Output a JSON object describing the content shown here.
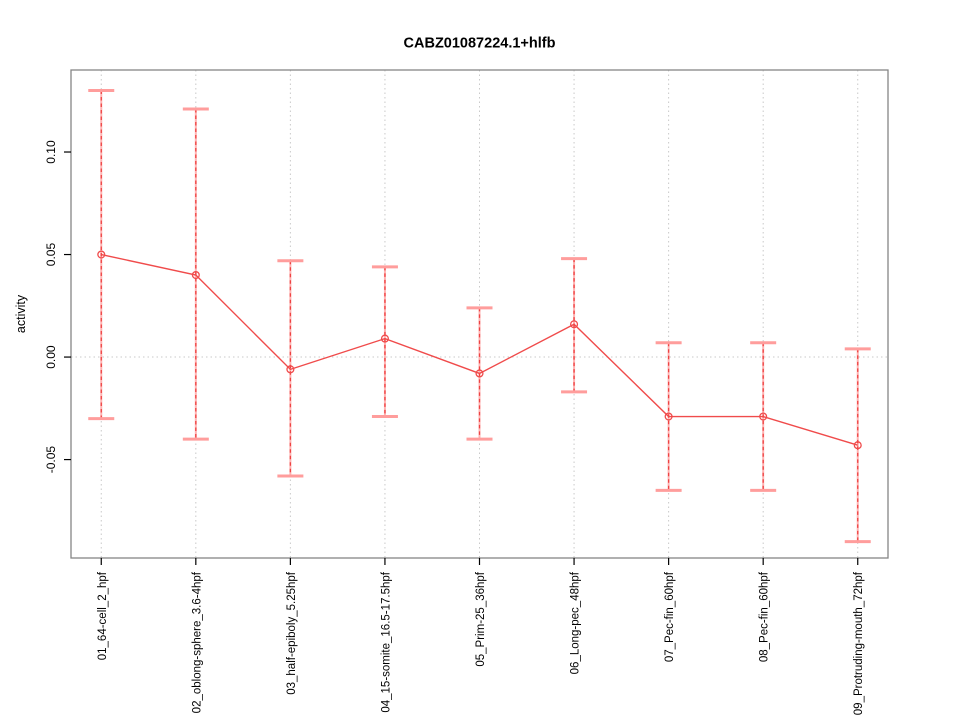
{
  "chart_data": {
    "type": "line",
    "title": "CABZ01087224.1+hlfb",
    "ylabel": "activity",
    "xlabel": "",
    "categories": [
      "01_64-cell_2_hpf",
      "02_oblong-sphere_3.6-4hpf",
      "03_half-epiboly_5.25hpf",
      "04_15-somite_16.5-17.5hpf",
      "05_Prim-25_36hpf",
      "06_Long-pec_48hpf",
      "07_Pec-fin_60hpf",
      "08_Pec-fin_60hpf",
      "09_Protruding-mouth_72hpf"
    ],
    "series": [
      {
        "name": "activity",
        "values": [
          0.05,
          0.04,
          -0.006,
          0.009,
          -0.008,
          0.016,
          -0.029,
          -0.029,
          -0.043
        ],
        "error_high": [
          0.13,
          0.121,
          0.047,
          0.044,
          0.024,
          0.048,
          0.007,
          0.007,
          0.004
        ],
        "error_low": [
          -0.03,
          -0.04,
          -0.058,
          -0.029,
          -0.04,
          -0.017,
          -0.065,
          -0.065,
          -0.09
        ]
      }
    ],
    "ylim": [
      -0.098,
      0.14
    ],
    "yticks": {
      "values": [
        -0.05,
        0.0,
        0.05,
        0.1
      ],
      "labels": [
        "-0.05",
        "0.00",
        "0.05",
        "0.10"
      ]
    },
    "grid": {
      "vertical_gridlines": "dotted at each category",
      "zero_line": "dotted horizontal at 0.00",
      "legend_position": "none"
    },
    "marker": "open-circle",
    "colors": {
      "line": "#f04b4b",
      "error_dash": "#ee4242",
      "error_cap": "#ff9d9c",
      "error_bar_underlay": "#ffb3b2",
      "grid": "#c9c9c9",
      "box": "#858585",
      "tick": "#000000",
      "text": "#000000",
      "background": "#ffffff"
    }
  }
}
